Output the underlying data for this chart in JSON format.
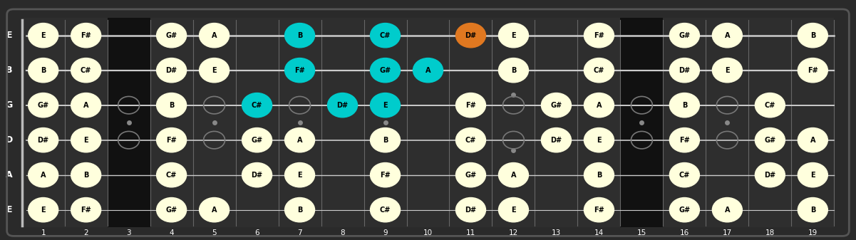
{
  "bg_color": "#2a2a2a",
  "fret_bg_dark": "#1a1a1a",
  "fret_bg_light": "#333333",
  "fret_color": "#666666",
  "nut_color": "#aaaaaa",
  "string_color": "#cccccc",
  "note_color_normal": "#ffffdd",
  "note_color_scale": "#00cccc",
  "note_color_highlight": "#e07820",
  "note_text_color": "#000000",
  "open_marker_color": "#888888",
  "label_color": "#ffffff",
  "num_frets": 19,
  "string_labels": [
    "E",
    "B",
    "G",
    "D",
    "A",
    "E"
  ],
  "fret_marker_positions": [
    3,
    5,
    7,
    9,
    12,
    15,
    17
  ],
  "notes": {
    "E_high": {
      "1": [
        "E",
        "normal"
      ],
      "2": [
        "F#",
        "normal"
      ],
      "4": [
        "G#",
        "normal"
      ],
      "5": [
        "A",
        "normal"
      ],
      "7": [
        "B",
        "cyan"
      ],
      "9": [
        "C#",
        "cyan"
      ],
      "11": [
        "D#",
        "orange"
      ],
      "12": [
        "E",
        "normal"
      ],
      "14": [
        "F#",
        "normal"
      ],
      "16": [
        "G#",
        "normal"
      ],
      "17": [
        "A",
        "normal"
      ],
      "19": [
        "B",
        "normal"
      ]
    },
    "B": {
      "1": [
        "B",
        "normal"
      ],
      "2": [
        "C#",
        "normal"
      ],
      "4": [
        "D#",
        "normal"
      ],
      "5": [
        "E",
        "normal"
      ],
      "7": [
        "F#",
        "cyan"
      ],
      "9": [
        "G#",
        "cyan"
      ],
      "10": [
        "A",
        "cyan"
      ],
      "12": [
        "B",
        "normal"
      ],
      "14": [
        "C#",
        "normal"
      ],
      "16": [
        "D#",
        "normal"
      ],
      "17": [
        "E",
        "normal"
      ],
      "19": [
        "F#",
        "normal"
      ]
    },
    "G": {
      "1": [
        "G#",
        "normal"
      ],
      "2": [
        "A",
        "normal"
      ],
      "4": [
        "B",
        "normal"
      ],
      "6": [
        "C#",
        "cyan"
      ],
      "8": [
        "D#",
        "cyan"
      ],
      "9": [
        "E",
        "cyan"
      ],
      "11": [
        "F#",
        "normal"
      ],
      "13": [
        "G#",
        "normal"
      ],
      "14": [
        "A",
        "normal"
      ],
      "16": [
        "B",
        "normal"
      ],
      "18": [
        "C#",
        "normal"
      ]
    },
    "D": {
      "1": [
        "D#",
        "normal"
      ],
      "2": [
        "E",
        "normal"
      ],
      "4": [
        "F#",
        "normal"
      ],
      "6": [
        "G#",
        "normal"
      ],
      "7": [
        "A",
        "normal"
      ],
      "9": [
        "B",
        "normal"
      ],
      "11": [
        "C#",
        "normal"
      ],
      "13": [
        "D#",
        "normal"
      ],
      "14": [
        "E",
        "normal"
      ],
      "16": [
        "F#",
        "normal"
      ],
      "18": [
        "G#",
        "normal"
      ],
      "19": [
        "A",
        "normal"
      ]
    },
    "A": {
      "1": [
        "A",
        "normal"
      ],
      "2": [
        "B",
        "normal"
      ],
      "4": [
        "C#",
        "normal"
      ],
      "6": [
        "D#",
        "normal"
      ],
      "7": [
        "E",
        "normal"
      ],
      "9": [
        "F#",
        "normal"
      ],
      "11": [
        "G#",
        "normal"
      ],
      "12": [
        "A",
        "normal"
      ],
      "14": [
        "B",
        "normal"
      ],
      "16": [
        "C#",
        "normal"
      ],
      "18": [
        "D#",
        "normal"
      ],
      "19": [
        "E",
        "normal"
      ]
    },
    "E_low": {
      "1": [
        "E",
        "normal"
      ],
      "2": [
        "F#",
        "normal"
      ],
      "4": [
        "G#",
        "normal"
      ],
      "5": [
        "A",
        "normal"
      ],
      "7": [
        "B",
        "normal"
      ],
      "9": [
        "C#",
        "normal"
      ],
      "11": [
        "D#",
        "normal"
      ],
      "12": [
        "E",
        "normal"
      ],
      "14": [
        "F#",
        "normal"
      ],
      "16": [
        "G#",
        "normal"
      ],
      "17": [
        "A",
        "normal"
      ],
      "19": [
        "B",
        "normal"
      ]
    }
  },
  "hollow_marker_positions": [
    3,
    5,
    7,
    9,
    12,
    15,
    17
  ]
}
